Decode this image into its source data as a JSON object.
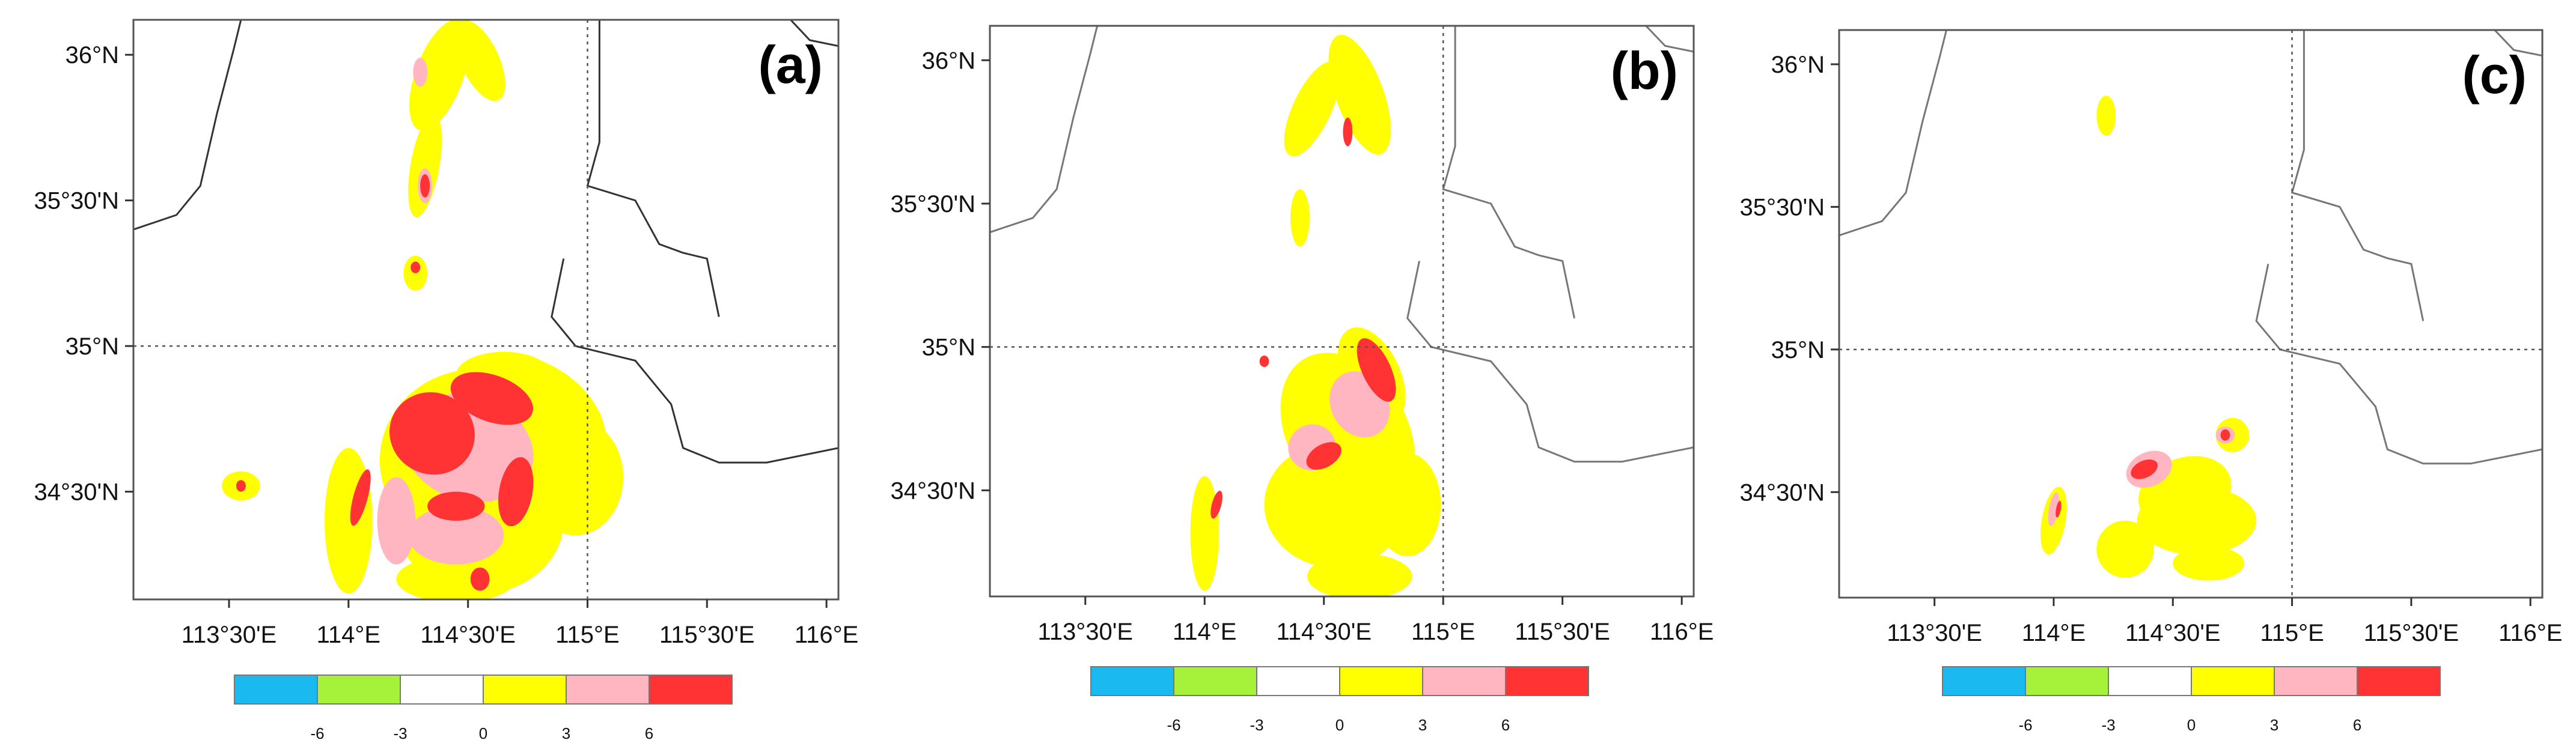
{
  "figure": {
    "panels": [
      {
        "id": "a",
        "letter": "(a)"
      },
      {
        "id": "b",
        "letter": "(b)"
      },
      {
        "id": "c",
        "letter": "(c)"
      }
    ],
    "lat_ticks": [
      "36°N",
      "35°30'N",
      "35°N",
      "34°30'N"
    ],
    "lon_ticks": [
      "113°30'E",
      "114°E",
      "114°30'E",
      "115°E",
      "115°30'E",
      "116°E"
    ],
    "colorbar": {
      "colors": [
        "#1ab9f0",
        "#a6f23a",
        "#ffffff",
        "#ffff00",
        "#ffb6c1",
        "#ff3333"
      ],
      "labels": [
        "-6",
        "-3",
        "0",
        "3",
        "6"
      ]
    },
    "contour_colors": {
      "low": "#ffff00",
      "mid": "#ffb6c1",
      "high": "#ff3333"
    },
    "gridline": {
      "lat": "35°N",
      "lon": "115°E",
      "style": "dotted"
    }
  }
}
